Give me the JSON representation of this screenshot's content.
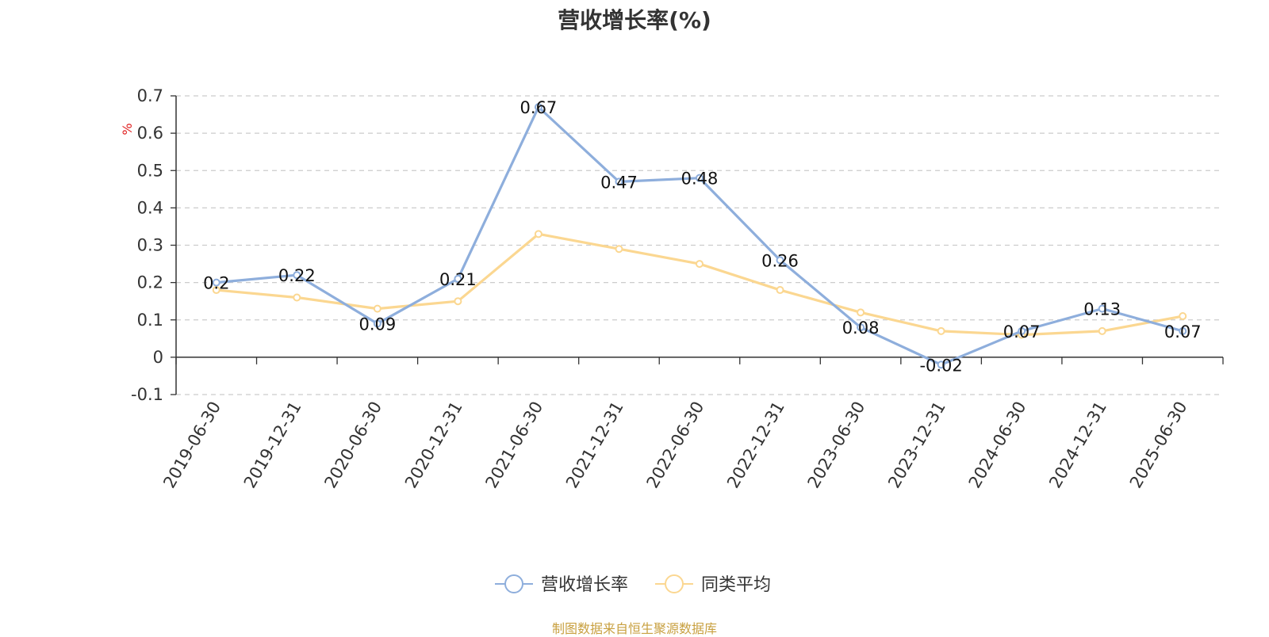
{
  "source_note": "制图数据来自恒生聚源数据库",
  "colors": {
    "series_1": "#8eaedc",
    "series_2": "#fbd791",
    "axis": "#333333",
    "grid": "#cccccc",
    "unit": "#e02020"
  },
  "chart_data": {
    "type": "line",
    "title": "营收增长率(%)",
    "ylabel": "%",
    "xlabel": "",
    "ylim": [
      -0.1,
      0.7
    ],
    "yticks": [
      -0.1,
      0,
      0.1,
      0.2,
      0.3,
      0.4,
      0.5,
      0.6,
      0.7
    ],
    "grid": true,
    "legend_position": "bottom-center",
    "categories": [
      "2019-06-30",
      "2019-12-31",
      "2020-06-30",
      "2020-12-31",
      "2021-06-30",
      "2021-12-31",
      "2022-06-30",
      "2022-12-31",
      "2023-06-30",
      "2023-12-31",
      "2024-06-30",
      "2024-12-31",
      "2025-06-30"
    ],
    "series": [
      {
        "name": "营收增长率",
        "values": [
          0.2,
          0.22,
          0.09,
          0.21,
          0.67,
          0.47,
          0.48,
          0.26,
          0.08,
          -0.02,
          0.07,
          0.13,
          0.07
        ],
        "labels_shown": true
      },
      {
        "name": "同类平均",
        "values": [
          0.18,
          0.16,
          0.13,
          0.15,
          0.33,
          0.29,
          0.25,
          0.18,
          0.12,
          0.07,
          0.06,
          0.07,
          0.11
        ],
        "labels_shown": false
      }
    ]
  }
}
